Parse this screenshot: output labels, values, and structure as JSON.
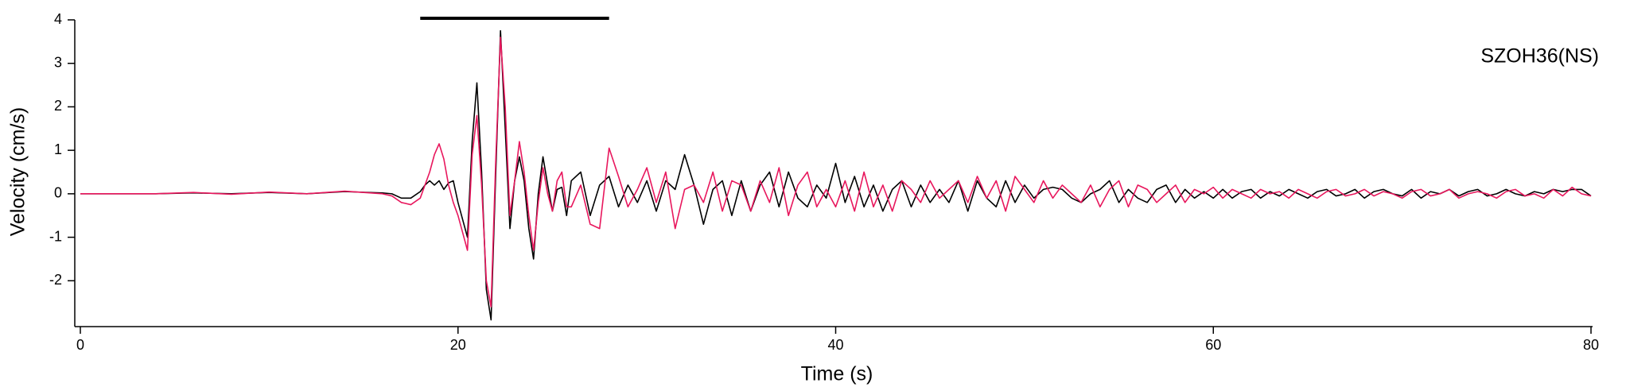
{
  "chart_data": {
    "type": "line",
    "annotation": "SZOH36(NS)",
    "x_label": "Time (s)",
    "y_label": "Velocity (cm/s)",
    "xlim": [
      0,
      80
    ],
    "xticks": [
      0,
      20,
      40,
      60,
      80
    ],
    "ylim": [
      -3,
      4
    ],
    "yticks": [
      -2,
      -1,
      0,
      1,
      2,
      3,
      4
    ],
    "highlight_xrange": [
      18,
      28
    ],
    "x": [
      0,
      2,
      4,
      6,
      8,
      10,
      12,
      14,
      16,
      16.5,
      17,
      17.5,
      18,
      18.25,
      18.5,
      18.75,
      19,
      19.25,
      19.5,
      19.75,
      20,
      20.25,
      20.5,
      20.75,
      21,
      21.25,
      21.5,
      21.75,
      22,
      22.25,
      22.5,
      22.75,
      23,
      23.25,
      23.5,
      23.75,
      24,
      24.25,
      24.5,
      24.75,
      25,
      25.25,
      25.5,
      25.75,
      26,
      26.5,
      27,
      27.5,
      28,
      28.5,
      29,
      29.5,
      30,
      30.5,
      31,
      31.5,
      32,
      32.5,
      33,
      33.5,
      34,
      34.5,
      35,
      35.5,
      36,
      36.5,
      37,
      37.5,
      38,
      38.5,
      39,
      39.5,
      40,
      40.5,
      41,
      41.5,
      42,
      42.5,
      43,
      43.5,
      44,
      44.5,
      45,
      45.5,
      46,
      46.5,
      47,
      47.5,
      48,
      48.5,
      49,
      49.5,
      50,
      50.5,
      51,
      51.5,
      52,
      52.5,
      53,
      53.5,
      54,
      54.5,
      55,
      55.5,
      56,
      56.5,
      57,
      57.5,
      58,
      58.5,
      59,
      59.5,
      60,
      60.5,
      61,
      61.5,
      62,
      62.5,
      63,
      63.5,
      64,
      64.5,
      65,
      65.5,
      66,
      66.5,
      67,
      67.5,
      68,
      68.5,
      69,
      69.5,
      70,
      70.5,
      71,
      71.5,
      72,
      72.5,
      73,
      73.5,
      74,
      74.5,
      75,
      75.5,
      76,
      76.5,
      77,
      77.5,
      78,
      78.5,
      79,
      79.5,
      80
    ],
    "series": [
      {
        "color": "#000000",
        "values": [
          0,
          0,
          0,
          0.02,
          0,
          0.03,
          0,
          0.05,
          0.02,
          0.0,
          -0.1,
          -0.1,
          0.05,
          0.2,
          0.3,
          0.2,
          0.3,
          0.1,
          0.25,
          0.3,
          -0.2,
          -0.6,
          -1.0,
          1.2,
          2.55,
          0.5,
          -2.2,
          -2.9,
          0.5,
          3.75,
          1.5,
          -0.8,
          0.3,
          0.85,
          0.3,
          -0.8,
          -1.5,
          0.0,
          0.85,
          0.2,
          -0.4,
          0.1,
          0.15,
          -0.5,
          0.3,
          0.5,
          -0.5,
          0.2,
          0.4,
          -0.3,
          0.2,
          -0.2,
          0.3,
          -0.4,
          0.3,
          0.1,
          0.9,
          0.2,
          -0.7,
          0.1,
          0.3,
          -0.5,
          0.3,
          -0.4,
          0.2,
          0.5,
          -0.3,
          0.5,
          -0.1,
          -0.3,
          0.2,
          -0.1,
          0.7,
          -0.2,
          0.4,
          -0.3,
          0.2,
          -0.4,
          0.1,
          0.3,
          -0.3,
          0.2,
          -0.2,
          0.1,
          -0.2,
          0.3,
          -0.4,
          0.3,
          -0.1,
          -0.3,
          0.3,
          -0.2,
          0.2,
          -0.1,
          0.1,
          0.15,
          0.1,
          -0.1,
          -0.2,
          0.0,
          0.1,
          0.3,
          -0.2,
          0.1,
          -0.1,
          -0.2,
          0.1,
          0.2,
          -0.2,
          0.1,
          -0.1,
          0.05,
          -0.1,
          0.1,
          -0.1,
          0.05,
          0.1,
          -0.1,
          0.05,
          -0.05,
          0.1,
          0.0,
          -0.1,
          0.05,
          0.1,
          -0.05,
          0.0,
          0.1,
          -0.1,
          0.05,
          0.1,
          0.0,
          -0.05,
          0.1,
          -0.1,
          0.05,
          0.0,
          0.1,
          -0.05,
          0.05,
          0.1,
          -0.05,
          0.0,
          0.1,
          0.0,
          -0.05,
          0.05,
          0.0,
          0.1,
          0.05,
          0.1,
          0.1,
          -0.05
        ]
      },
      {
        "color": "#e8175d",
        "values": [
          0,
          0,
          0,
          0.03,
          -0.01,
          0.04,
          0,
          0.06,
          0.0,
          -0.05,
          -0.2,
          -0.25,
          -0.1,
          0.2,
          0.5,
          0.9,
          1.15,
          0.8,
          0.2,
          -0.2,
          -0.5,
          -0.9,
          -1.3,
          0.9,
          1.8,
          0.2,
          -2.0,
          -2.6,
          0.8,
          3.6,
          2.0,
          -0.5,
          0.3,
          1.2,
          0.5,
          -0.5,
          -1.3,
          -0.2,
          0.6,
          0.0,
          -0.4,
          0.3,
          0.5,
          -0.3,
          -0.3,
          0.2,
          -0.7,
          -0.8,
          1.05,
          0.4,
          -0.3,
          0.1,
          0.6,
          -0.2,
          0.5,
          -0.8,
          0.1,
          0.2,
          -0.2,
          0.5,
          -0.4,
          0.3,
          0.2,
          -0.4,
          0.3,
          -0.2,
          0.6,
          -0.5,
          0.2,
          0.5,
          -0.3,
          0.1,
          -0.3,
          0.3,
          -0.4,
          0.5,
          -0.3,
          0.2,
          -0.4,
          0.3,
          0.1,
          -0.2,
          0.3,
          -0.1,
          0.1,
          0.3,
          -0.2,
          0.4,
          -0.1,
          0.3,
          -0.4,
          0.4,
          0.1,
          -0.2,
          0.3,
          -0.1,
          0.2,
          0.0,
          -0.2,
          0.2,
          -0.3,
          0.1,
          0.3,
          -0.3,
          0.2,
          0.1,
          -0.2,
          0.0,
          0.2,
          -0.2,
          0.1,
          0.0,
          0.15,
          -0.1,
          0.1,
          0.0,
          -0.1,
          0.1,
          0.0,
          0.05,
          -0.1,
          0.1,
          0.0,
          -0.1,
          0.05,
          0.1,
          -0.05,
          0.0,
          0.1,
          -0.05,
          0.05,
          0.0,
          -0.1,
          0.05,
          0.1,
          -0.05,
          0.0,
          0.1,
          -0.1,
          0.0,
          0.05,
          0.0,
          -0.1,
          0.05,
          0.1,
          -0.05,
          0.0,
          -0.1,
          0.1,
          -0.05,
          0.15,
          0.0,
          -0.05
        ]
      }
    ]
  }
}
